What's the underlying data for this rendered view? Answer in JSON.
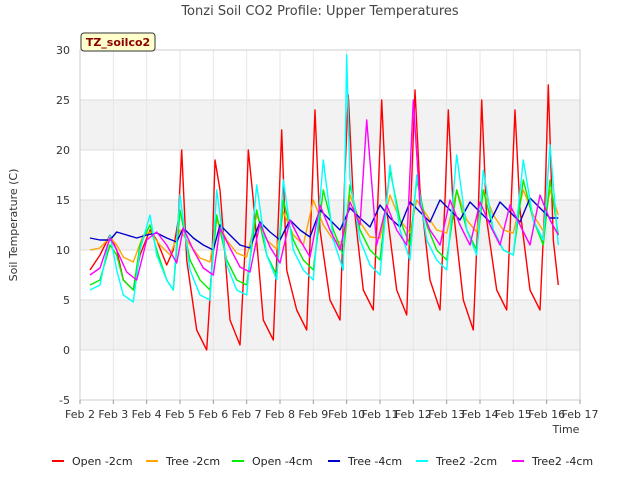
{
  "chart_data": {
    "type": "line",
    "title": "Tonzi Soil CO2 Profile: Upper Temperatures",
    "xlabel": "Time",
    "ylabel": "Soil Temperature (C)",
    "tag_label": "TZ_soilco2",
    "xlim": [
      2,
      17
    ],
    "ylim": [
      -5,
      30
    ],
    "x_ticks": [
      {
        "v": 2,
        "label": "Feb 2"
      },
      {
        "v": 3,
        "label": "Feb 3"
      },
      {
        "v": 4,
        "label": "Feb 4"
      },
      {
        "v": 5,
        "label": "Feb 5"
      },
      {
        "v": 6,
        "label": "Feb 6"
      },
      {
        "v": 7,
        "label": "Feb 7"
      },
      {
        "v": 8,
        "label": "Feb 8"
      },
      {
        "v": 9,
        "label": "Feb 9"
      },
      {
        "v": 10,
        "label": "Feb 10"
      },
      {
        "v": 11,
        "label": "Feb 11"
      },
      {
        "v": 12,
        "label": "Feb 12"
      },
      {
        "v": 13,
        "label": "Feb 13"
      },
      {
        "v": 14,
        "label": "Feb 14"
      },
      {
        "v": 15,
        "label": "Feb 15"
      },
      {
        "v": 16,
        "label": "Feb 16"
      },
      {
        "v": 17,
        "label": "Feb 17"
      }
    ],
    "y_ticks": [
      {
        "v": -5,
        "label": "-5"
      },
      {
        "v": 0,
        "label": "0"
      },
      {
        "v": 5,
        "label": "5"
      },
      {
        "v": 10,
        "label": "10"
      },
      {
        "v": 15,
        "label": "15"
      },
      {
        "v": 20,
        "label": "20"
      },
      {
        "v": 25,
        "label": "25"
      },
      {
        "v": 30,
        "label": "30"
      }
    ],
    "grid": true,
    "legend_position": "bottom",
    "series": [
      {
        "name": "Open -2cm",
        "color": "#ff0000",
        "x": [
          2.3,
          2.6,
          2.9,
          3.1,
          3.3,
          3.6,
          3.8,
          4.1,
          4.3,
          4.6,
          4.8,
          4.95,
          5.05,
          5.2,
          5.5,
          5.8,
          5.95,
          6.05,
          6.2,
          6.5,
          6.8,
          6.95,
          7.05,
          7.2,
          7.5,
          7.8,
          7.95,
          8.05,
          8.2,
          8.5,
          8.8,
          8.95,
          9.05,
          9.2,
          9.5,
          9.8,
          9.95,
          10.05,
          10.2,
          10.5,
          10.8,
          10.95,
          11.05,
          11.2,
          11.5,
          11.8,
          11.95,
          12.05,
          12.2,
          12.5,
          12.8,
          12.95,
          13.05,
          13.2,
          13.5,
          13.8,
          13.95,
          14.05,
          14.2,
          14.5,
          14.8,
          14.95,
          15.05,
          15.2,
          15.5,
          15.8,
          15.95,
          16.05,
          16.2,
          16.35
        ],
        "y": [
          8,
          9.5,
          11.5,
          10,
          7,
          6,
          9.5,
          12,
          11,
          8.5,
          10,
          13,
          20,
          9,
          2,
          0,
          8,
          19,
          16,
          3,
          0.5,
          10,
          20,
          15,
          3,
          1,
          13,
          22,
          8,
          4,
          2,
          15,
          24,
          12,
          5,
          3,
          18,
          25.5,
          15,
          6,
          4,
          16,
          25,
          14,
          6,
          3.5,
          17,
          26,
          16,
          7,
          4,
          15,
          24,
          14,
          5,
          2,
          14,
          25,
          13,
          6,
          4,
          16,
          24,
          14,
          6,
          4,
          15,
          26.5,
          11,
          6.5
        ]
      },
      {
        "name": "Tree -2cm",
        "color": "#ffa500",
        "x": [
          2.3,
          2.6,
          2.9,
          3.1,
          3.3,
          3.6,
          3.9,
          4.1,
          4.4,
          4.7,
          5,
          5.3,
          5.6,
          5.9,
          6.1,
          6.4,
          6.7,
          7,
          7.3,
          7.6,
          7.9,
          8.1,
          8.4,
          8.7,
          9,
          9.3,
          9.6,
          9.9,
          10.1,
          10.4,
          10.7,
          11,
          11.3,
          11.6,
          11.9,
          12.1,
          12.4,
          12.7,
          13,
          13.3,
          13.6,
          13.9,
          14.1,
          14.4,
          14.7,
          15,
          15.3,
          15.6,
          15.9,
          16.1,
          16.35
        ],
        "y": [
          10,
          10.2,
          11.3,
          10.5,
          9.3,
          8.8,
          11.5,
          11.8,
          10.5,
          9.5,
          12,
          10.5,
          9.2,
          8.8,
          13,
          11,
          9.7,
          9.3,
          13.5,
          11,
          10.1,
          13.8,
          11.5,
          10.5,
          15,
          12.5,
          11,
          10.7,
          15.5,
          12.8,
          11.3,
          11.2,
          15.5,
          13,
          11.7,
          15,
          13.5,
          12,
          11.7,
          16,
          13,
          11.8,
          16,
          13.5,
          12,
          11.7,
          16,
          13.5,
          11.9,
          16,
          13.5
        ]
      },
      {
        "name": "Open -4cm",
        "color": "#00ee00",
        "x": [
          2.3,
          2.6,
          2.9,
          3.1,
          3.3,
          3.6,
          3.8,
          4.1,
          4.3,
          4.6,
          4.8,
          5,
          5.3,
          5.6,
          5.9,
          6.1,
          6.4,
          6.7,
          7,
          7.3,
          7.6,
          7.9,
          8.1,
          8.4,
          8.7,
          9,
          9.3,
          9.6,
          9.9,
          10.1,
          10.4,
          10.7,
          11,
          11.3,
          11.6,
          11.9,
          12.1,
          12.4,
          12.7,
          13,
          13.3,
          13.6,
          13.9,
          14.1,
          14.4,
          14.7,
          15,
          15.3,
          15.6,
          15.9,
          16.1,
          16.35
        ],
        "y": [
          6.5,
          7,
          10.5,
          9.5,
          7,
          6,
          10.5,
          12.5,
          10,
          7,
          6,
          14,
          9,
          7,
          6,
          13.5,
          9,
          7,
          6.5,
          14,
          9.5,
          7.5,
          15,
          11,
          9,
          8,
          16,
          12,
          9.5,
          16.5,
          12,
          10,
          9,
          18,
          13,
          10.5,
          17,
          12.5,
          10,
          9,
          16,
          12,
          10,
          16,
          12,
          10,
          9.5,
          17,
          13,
          10.5,
          17,
          11.5
        ]
      },
      {
        "name": "Tree -4cm",
        "color": "#0000cc",
        "x": [
          2.3,
          2.6,
          2.9,
          3.1,
          3.4,
          3.7,
          4,
          4.3,
          4.6,
          4.9,
          5.1,
          5.4,
          5.7,
          6,
          6.2,
          6.5,
          6.8,
          7.1,
          7.4,
          7.7,
          8,
          8.3,
          8.6,
          8.9,
          9.2,
          9.5,
          9.8,
          10.1,
          10.4,
          10.7,
          11,
          11.3,
          11.6,
          11.9,
          12.2,
          12.5,
          12.8,
          13.1,
          13.4,
          13.7,
          14,
          14.3,
          14.6,
          14.9,
          15.2,
          15.5,
          15.8,
          16.1,
          16.35
        ],
        "y": [
          11.2,
          11,
          11,
          11.8,
          11.5,
          11.2,
          11.5,
          11.7,
          11.2,
          10.8,
          12.2,
          11.2,
          10.5,
          10,
          12.5,
          11.5,
          10.5,
          10.2,
          12.8,
          11.8,
          11,
          13,
          12,
          11.3,
          14,
          13,
          12,
          14.2,
          13.2,
          12.3,
          14.5,
          13.2,
          12.3,
          14.8,
          13.8,
          12.8,
          15,
          14,
          13,
          14.8,
          13.8,
          12.8,
          14.8,
          13.8,
          12.8,
          15.2,
          14.2,
          13.2,
          13.2
        ]
      },
      {
        "name": "Tree2 -2cm",
        "color": "#00ffff",
        "x": [
          2.3,
          2.6,
          2.9,
          3.1,
          3.3,
          3.6,
          3.8,
          4.1,
          4.3,
          4.6,
          4.8,
          5,
          5.3,
          5.6,
          5.9,
          6.1,
          6.4,
          6.7,
          7,
          7.3,
          7.6,
          7.9,
          8.1,
          8.4,
          8.7,
          9,
          9.3,
          9.6,
          9.9,
          10,
          10.1,
          10.4,
          10.7,
          11,
          11.3,
          11.6,
          11.9,
          12.1,
          12.4,
          12.7,
          13,
          13.3,
          13.6,
          13.9,
          14.1,
          14.4,
          14.7,
          15,
          15.3,
          15.6,
          15.9,
          16.1,
          16.35
        ],
        "y": [
          6,
          6.5,
          11.5,
          8,
          5.5,
          4.8,
          10,
          13.5,
          9.5,
          7,
          6,
          15.5,
          8,
          5.5,
          5,
          16,
          8.5,
          6,
          5.5,
          16.5,
          9.5,
          7,
          17,
          10,
          8,
          7,
          19,
          11,
          8,
          29.5,
          17,
          11,
          8.5,
          7.5,
          18.5,
          12,
          9,
          17.5,
          11,
          9,
          8,
          19.5,
          12,
          9.5,
          18,
          12,
          10,
          9.5,
          19,
          13,
          11,
          20.5,
          10.5
        ]
      },
      {
        "name": "Tree2 -4cm",
        "color": "#ff00ff",
        "x": [
          2.3,
          2.6,
          2.9,
          3.1,
          3.4,
          3.7,
          4,
          4.3,
          4.6,
          4.9,
          5.1,
          5.4,
          5.7,
          6,
          6.2,
          6.5,
          6.8,
          7.1,
          7.4,
          7.7,
          8,
          8.3,
          8.6,
          8.9,
          9.2,
          9.5,
          9.8,
          10.1,
          10.4,
          10.6,
          10.9,
          11.2,
          11.5,
          11.8,
          12,
          12.2,
          12.5,
          12.8,
          13.1,
          13.4,
          13.7,
          14,
          14.3,
          14.6,
          14.9,
          15.2,
          15.5,
          15.8,
          16.1,
          16.35
        ],
        "y": [
          7.5,
          8.2,
          11.2,
          10,
          7.8,
          7,
          11,
          11.8,
          10.5,
          8.7,
          12.2,
          10,
          8.2,
          7.5,
          12.2,
          10.2,
          8.3,
          7.8,
          12.7,
          10.3,
          8.7,
          13,
          11,
          9.3,
          14.5,
          12,
          10,
          14.8,
          12.5,
          23,
          10.5,
          14.5,
          12,
          10.5,
          25,
          14.5,
          12,
          10.5,
          15,
          12.5,
          10.5,
          14.8,
          12.5,
          10.5,
          14.5,
          12.5,
          10.5,
          15.5,
          13,
          11.5
        ]
      }
    ]
  }
}
